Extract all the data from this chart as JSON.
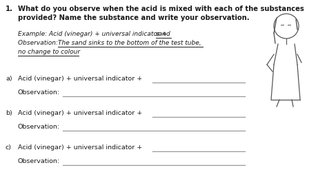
{
  "bg_color": "#ffffff",
  "text_color": "#1a1a1a",
  "line_color": "#999999",
  "title_num": "1.",
  "title_line1": "What do you observe when the acid is mixed with each of the substances",
  "title_line2": "provided? Name the substance and write your observation.",
  "ex_prefix": "Example: Acid (vinegar) + universal indicator + ",
  "ex_word": "sand",
  "obs_prefix": "Observation: ",
  "obs_ul_line1": "The sand sinks to the bottom of the test tube,",
  "obs_ul_line2": "no change to colour",
  "item_labels": [
    "a)",
    "b)",
    "c)"
  ],
  "item_text": "Acid (vinegar) + universal indicator + ",
  "obs_label": "Observation:",
  "fs_title": 7.2,
  "fs_body": 6.8,
  "fs_example": 6.5
}
